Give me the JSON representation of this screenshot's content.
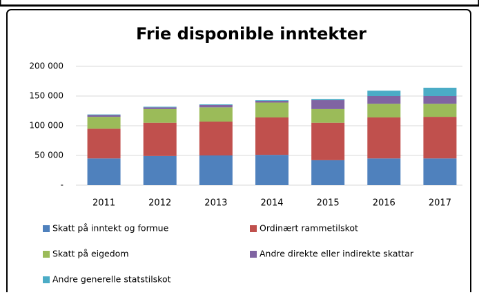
{
  "chart_data": {
    "type": "stacked_bar",
    "title": "Frie disponible inntekter",
    "categories": [
      "2011",
      "2012",
      "2013",
      "2014",
      "2015",
      "2016",
      "2017"
    ],
    "series": [
      {
        "name": "Skatt på inntekt og formue",
        "color": "#4f81bd",
        "values": [
          45000,
          49000,
          50000,
          51000,
          42000,
          45000,
          45000
        ]
      },
      {
        "name": "Ordinært rammetilskot",
        "color": "#c0504d",
        "values": [
          50000,
          56000,
          57000,
          63000,
          63000,
          69000,
          70000
        ]
      },
      {
        "name": "Skatt på eigedom",
        "color": "#9bbb59",
        "values": [
          20000,
          23000,
          24000,
          25000,
          23000,
          23000,
          22000
        ]
      },
      {
        "name": "Andre direkte eller indirekte skattar",
        "color": "#8064a2",
        "values": [
          3000,
          3000,
          4000,
          3000,
          15000,
          13000,
          13000
        ]
      },
      {
        "name": "Andre generelle statstilskot",
        "color": "#4bacc6",
        "values": [
          1000,
          1000,
          1000,
          1000,
          2000,
          9000,
          14000
        ]
      }
    ],
    "ylim": [
      0,
      200000
    ],
    "yticks": [
      {
        "value": 0,
        "label": "-"
      },
      {
        "value": 50000,
        "label": "50 000"
      },
      {
        "value": 100000,
        "label": "100 000"
      },
      {
        "value": 150000,
        "label": "150 000"
      },
      {
        "value": 200000,
        "label": "200 000"
      }
    ],
    "grid": true
  }
}
